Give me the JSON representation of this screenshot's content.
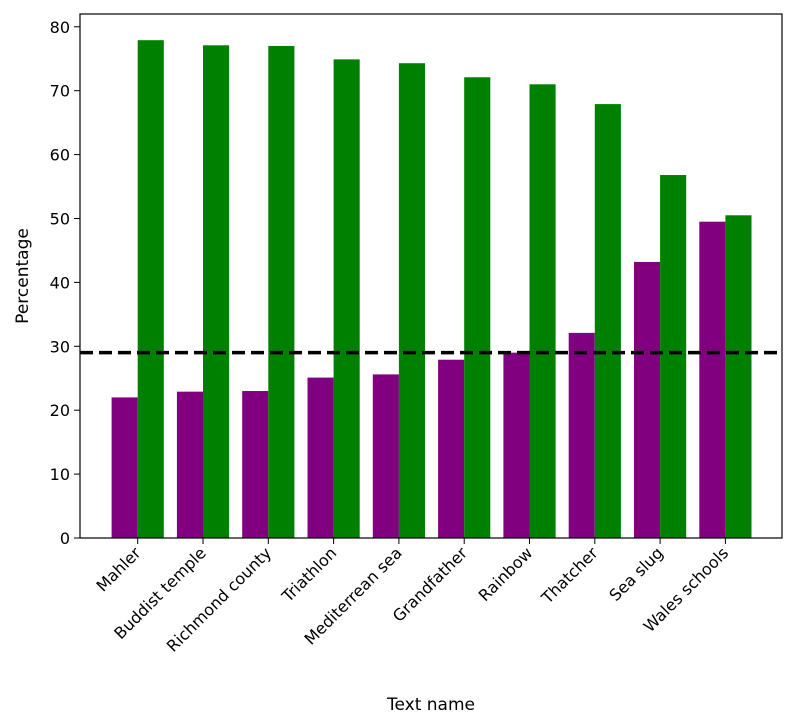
{
  "chart_data": {
    "type": "bar",
    "xlabel": "Text name",
    "ylabel": "Percentage",
    "categories": [
      "Mahler",
      "Buddist temple",
      "Richmond county",
      "Triathlon",
      "Mediterrean sea",
      "Grandfather",
      "Rainbow",
      "Thatcher",
      "Sea slug",
      "Wales schools"
    ],
    "series": [
      {
        "color": "#800080",
        "values": [
          22.0,
          22.9,
          23.0,
          25.1,
          25.6,
          27.9,
          29.0,
          32.1,
          43.2,
          49.5
        ]
      },
      {
        "color": "#008000",
        "values": [
          77.9,
          77.1,
          77.0,
          74.9,
          74.3,
          72.1,
          71.0,
          67.9,
          56.8,
          50.5
        ]
      }
    ],
    "reference_line": {
      "y": 29.0,
      "color": "#000000",
      "style": "dashed"
    },
    "ylim": [
      0,
      82
    ],
    "yticks": [
      0,
      10,
      20,
      30,
      40,
      50,
      60,
      70,
      80
    ],
    "grid": false,
    "legend": "none"
  }
}
